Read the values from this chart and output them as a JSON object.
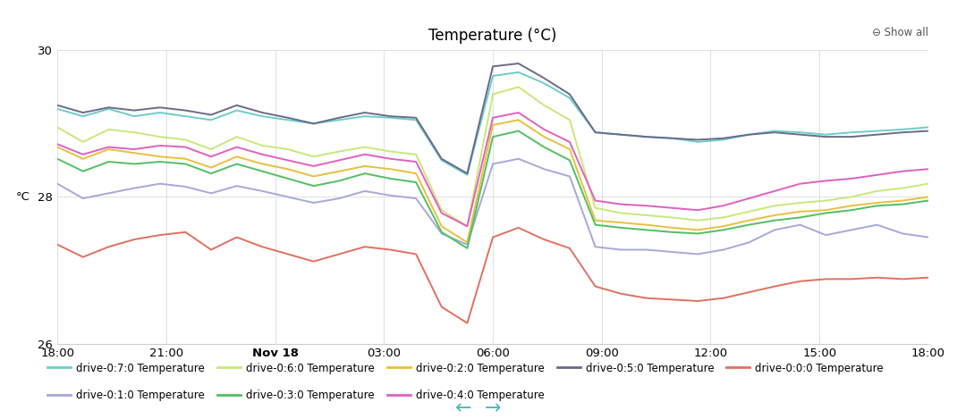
{
  "title": "Temperature (°C)",
  "ylabel": "°C",
  "ylim": [
    26,
    30
  ],
  "yticks": [
    26,
    28,
    30
  ],
  "xtick_labels": [
    "18:00",
    "21:00",
    "Nov 18",
    "03:00",
    "06:00",
    "09:00",
    "12:00",
    "15:00",
    "18:00"
  ],
  "xtick_bold_idx": 2,
  "background": "#ffffff",
  "grid_color": "#e0e0e0",
  "series": {
    "drive-0:7:0 Temperature": {
      "color": "#6dcdc8",
      "data": [
        29.2,
        29.1,
        29.2,
        29.1,
        29.15,
        29.1,
        29.05,
        29.18,
        29.1,
        29.05,
        29.0,
        29.05,
        29.1,
        29.08,
        29.05,
        28.5,
        28.3,
        29.65,
        29.7,
        29.55,
        29.35,
        28.88,
        28.85,
        28.82,
        28.8,
        28.75,
        28.78,
        28.85,
        28.9,
        28.88,
        28.85,
        28.88,
        28.9,
        28.92,
        28.95
      ]
    },
    "drive-0:6:0 Temperature": {
      "color": "#c8e87a",
      "data": [
        28.95,
        28.75,
        28.92,
        28.88,
        28.82,
        28.78,
        28.65,
        28.82,
        28.7,
        28.65,
        28.55,
        28.62,
        28.68,
        28.62,
        28.58,
        27.82,
        27.6,
        29.4,
        29.5,
        29.25,
        29.05,
        27.85,
        27.78,
        27.75,
        27.72,
        27.68,
        27.72,
        27.8,
        27.88,
        27.92,
        27.95,
        28.0,
        28.08,
        28.12,
        28.18
      ]
    },
    "drive-0:2:0 Temperature": {
      "color": "#e8c040",
      "data": [
        28.68,
        28.52,
        28.65,
        28.6,
        28.55,
        28.52,
        28.4,
        28.55,
        28.45,
        28.38,
        28.28,
        28.35,
        28.42,
        28.38,
        28.32,
        27.6,
        27.38,
        28.98,
        29.05,
        28.82,
        28.65,
        27.68,
        27.65,
        27.62,
        27.58,
        27.55,
        27.6,
        27.68,
        27.75,
        27.8,
        27.82,
        27.88,
        27.92,
        27.95,
        28.0
      ]
    },
    "drive-0:5:0 Temperature": {
      "color": "#6a6a8a",
      "data": [
        29.25,
        29.15,
        29.22,
        29.18,
        29.22,
        29.18,
        29.12,
        29.25,
        29.15,
        29.08,
        29.0,
        29.08,
        29.15,
        29.1,
        29.08,
        28.52,
        28.32,
        29.78,
        29.82,
        29.62,
        29.4,
        28.88,
        28.85,
        28.82,
        28.8,
        28.78,
        28.8,
        28.85,
        28.88,
        28.85,
        28.82,
        28.82,
        28.85,
        28.88,
        28.9
      ]
    },
    "drive-0:0:0 Temperature": {
      "color": "#e07060",
      "data": [
        27.35,
        27.18,
        27.32,
        27.42,
        27.48,
        27.52,
        27.28,
        27.45,
        27.32,
        27.22,
        27.12,
        27.22,
        27.32,
        27.28,
        27.22,
        26.5,
        26.28,
        27.45,
        27.58,
        27.42,
        27.3,
        26.78,
        26.68,
        26.62,
        26.6,
        26.58,
        26.62,
        26.7,
        26.78,
        26.85,
        26.88,
        26.88,
        26.9,
        26.88,
        26.9
      ]
    },
    "drive-0:1:0 Temperature": {
      "color": "#a8a8d8",
      "data": [
        28.18,
        27.98,
        28.05,
        28.12,
        28.18,
        28.14,
        28.05,
        28.15,
        28.08,
        28.0,
        27.92,
        27.98,
        28.08,
        28.02,
        27.98,
        27.5,
        27.35,
        28.45,
        28.52,
        28.38,
        28.28,
        27.32,
        27.28,
        27.28,
        27.25,
        27.22,
        27.28,
        27.38,
        27.55,
        27.62,
        27.48,
        27.55,
        27.62,
        27.5,
        27.45
      ]
    },
    "drive-0:3:0 Temperature": {
      "color": "#50c060",
      "data": [
        28.52,
        28.35,
        28.48,
        28.45,
        28.48,
        28.45,
        28.32,
        28.45,
        28.35,
        28.25,
        28.15,
        28.22,
        28.32,
        28.25,
        28.2,
        27.52,
        27.3,
        28.82,
        28.9,
        28.68,
        28.5,
        27.62,
        27.58,
        27.55,
        27.52,
        27.5,
        27.55,
        27.62,
        27.68,
        27.72,
        27.78,
        27.82,
        27.88,
        27.9,
        27.95
      ]
    },
    "drive-0:4:0 Temperature": {
      "color": "#e060c0",
      "data": [
        28.72,
        28.58,
        28.68,
        28.65,
        28.7,
        28.68,
        28.55,
        28.68,
        28.58,
        28.5,
        28.42,
        28.5,
        28.58,
        28.52,
        28.48,
        27.78,
        27.6,
        29.08,
        29.15,
        28.92,
        28.75,
        27.95,
        27.9,
        27.88,
        27.85,
        27.82,
        27.88,
        27.98,
        28.08,
        28.18,
        28.22,
        28.25,
        28.3,
        28.35,
        28.38
      ]
    }
  },
  "legend_row1": [
    "drive-0:7:0 Temperature",
    "drive-0:6:0 Temperature",
    "drive-0:2:0 Temperature",
    "drive-0:5:0 Temperature",
    "drive-0:0:0 Temperature"
  ],
  "legend_row2": [
    "drive-0:1:0 Temperature",
    "drive-0:3:0 Temperature",
    "drive-0:4:0 Temperature"
  ]
}
